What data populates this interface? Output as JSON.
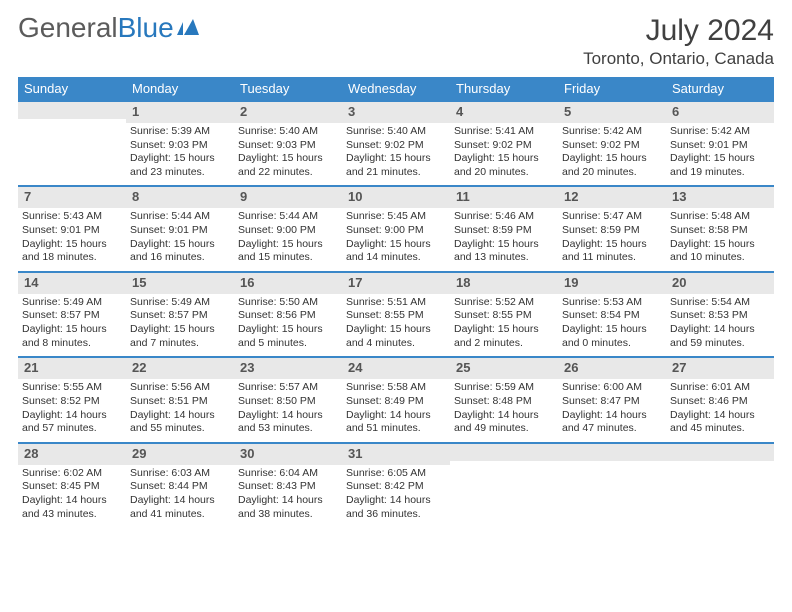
{
  "branding": {
    "logo_text_1": "General",
    "logo_text_2": "Blue",
    "logo_color_general": "#5b5b5b",
    "logo_color_blue": "#2878bd"
  },
  "header": {
    "month_title": "July 2024",
    "location": "Toronto, Ontario, Canada",
    "title_fontsize": 30,
    "location_fontsize": 17,
    "title_color": "#404040"
  },
  "calendar": {
    "type": "table",
    "header_bg": "#3a87c8",
    "header_fg": "#ffffff",
    "daynum_bg": "#e8e8e8",
    "daynum_border_top": "#3a87c8",
    "body_fontsize": 10.5,
    "header_fontsize": 13,
    "columns": [
      "Sunday",
      "Monday",
      "Tuesday",
      "Wednesday",
      "Thursday",
      "Friday",
      "Saturday"
    ],
    "weeks": [
      [
        {
          "day": "",
          "sunrise": "",
          "sunset": "",
          "daylight": ""
        },
        {
          "day": "1",
          "sunrise": "Sunrise: 5:39 AM",
          "sunset": "Sunset: 9:03 PM",
          "daylight": "Daylight: 15 hours and 23 minutes."
        },
        {
          "day": "2",
          "sunrise": "Sunrise: 5:40 AM",
          "sunset": "Sunset: 9:03 PM",
          "daylight": "Daylight: 15 hours and 22 minutes."
        },
        {
          "day": "3",
          "sunrise": "Sunrise: 5:40 AM",
          "sunset": "Sunset: 9:02 PM",
          "daylight": "Daylight: 15 hours and 21 minutes."
        },
        {
          "day": "4",
          "sunrise": "Sunrise: 5:41 AM",
          "sunset": "Sunset: 9:02 PM",
          "daylight": "Daylight: 15 hours and 20 minutes."
        },
        {
          "day": "5",
          "sunrise": "Sunrise: 5:42 AM",
          "sunset": "Sunset: 9:02 PM",
          "daylight": "Daylight: 15 hours and 20 minutes."
        },
        {
          "day": "6",
          "sunrise": "Sunrise: 5:42 AM",
          "sunset": "Sunset: 9:01 PM",
          "daylight": "Daylight: 15 hours and 19 minutes."
        }
      ],
      [
        {
          "day": "7",
          "sunrise": "Sunrise: 5:43 AM",
          "sunset": "Sunset: 9:01 PM",
          "daylight": "Daylight: 15 hours and 18 minutes."
        },
        {
          "day": "8",
          "sunrise": "Sunrise: 5:44 AM",
          "sunset": "Sunset: 9:01 PM",
          "daylight": "Daylight: 15 hours and 16 minutes."
        },
        {
          "day": "9",
          "sunrise": "Sunrise: 5:44 AM",
          "sunset": "Sunset: 9:00 PM",
          "daylight": "Daylight: 15 hours and 15 minutes."
        },
        {
          "day": "10",
          "sunrise": "Sunrise: 5:45 AM",
          "sunset": "Sunset: 9:00 PM",
          "daylight": "Daylight: 15 hours and 14 minutes."
        },
        {
          "day": "11",
          "sunrise": "Sunrise: 5:46 AM",
          "sunset": "Sunset: 8:59 PM",
          "daylight": "Daylight: 15 hours and 13 minutes."
        },
        {
          "day": "12",
          "sunrise": "Sunrise: 5:47 AM",
          "sunset": "Sunset: 8:59 PM",
          "daylight": "Daylight: 15 hours and 11 minutes."
        },
        {
          "day": "13",
          "sunrise": "Sunrise: 5:48 AM",
          "sunset": "Sunset: 8:58 PM",
          "daylight": "Daylight: 15 hours and 10 minutes."
        }
      ],
      [
        {
          "day": "14",
          "sunrise": "Sunrise: 5:49 AM",
          "sunset": "Sunset: 8:57 PM",
          "daylight": "Daylight: 15 hours and 8 minutes."
        },
        {
          "day": "15",
          "sunrise": "Sunrise: 5:49 AM",
          "sunset": "Sunset: 8:57 PM",
          "daylight": "Daylight: 15 hours and 7 minutes."
        },
        {
          "day": "16",
          "sunrise": "Sunrise: 5:50 AM",
          "sunset": "Sunset: 8:56 PM",
          "daylight": "Daylight: 15 hours and 5 minutes."
        },
        {
          "day": "17",
          "sunrise": "Sunrise: 5:51 AM",
          "sunset": "Sunset: 8:55 PM",
          "daylight": "Daylight: 15 hours and 4 minutes."
        },
        {
          "day": "18",
          "sunrise": "Sunrise: 5:52 AM",
          "sunset": "Sunset: 8:55 PM",
          "daylight": "Daylight: 15 hours and 2 minutes."
        },
        {
          "day": "19",
          "sunrise": "Sunrise: 5:53 AM",
          "sunset": "Sunset: 8:54 PM",
          "daylight": "Daylight: 15 hours and 0 minutes."
        },
        {
          "day": "20",
          "sunrise": "Sunrise: 5:54 AM",
          "sunset": "Sunset: 8:53 PM",
          "daylight": "Daylight: 14 hours and 59 minutes."
        }
      ],
      [
        {
          "day": "21",
          "sunrise": "Sunrise: 5:55 AM",
          "sunset": "Sunset: 8:52 PM",
          "daylight": "Daylight: 14 hours and 57 minutes."
        },
        {
          "day": "22",
          "sunrise": "Sunrise: 5:56 AM",
          "sunset": "Sunset: 8:51 PM",
          "daylight": "Daylight: 14 hours and 55 minutes."
        },
        {
          "day": "23",
          "sunrise": "Sunrise: 5:57 AM",
          "sunset": "Sunset: 8:50 PM",
          "daylight": "Daylight: 14 hours and 53 minutes."
        },
        {
          "day": "24",
          "sunrise": "Sunrise: 5:58 AM",
          "sunset": "Sunset: 8:49 PM",
          "daylight": "Daylight: 14 hours and 51 minutes."
        },
        {
          "day": "25",
          "sunrise": "Sunrise: 5:59 AM",
          "sunset": "Sunset: 8:48 PM",
          "daylight": "Daylight: 14 hours and 49 minutes."
        },
        {
          "day": "26",
          "sunrise": "Sunrise: 6:00 AM",
          "sunset": "Sunset: 8:47 PM",
          "daylight": "Daylight: 14 hours and 47 minutes."
        },
        {
          "day": "27",
          "sunrise": "Sunrise: 6:01 AM",
          "sunset": "Sunset: 8:46 PM",
          "daylight": "Daylight: 14 hours and 45 minutes."
        }
      ],
      [
        {
          "day": "28",
          "sunrise": "Sunrise: 6:02 AM",
          "sunset": "Sunset: 8:45 PM",
          "daylight": "Daylight: 14 hours and 43 minutes."
        },
        {
          "day": "29",
          "sunrise": "Sunrise: 6:03 AM",
          "sunset": "Sunset: 8:44 PM",
          "daylight": "Daylight: 14 hours and 41 minutes."
        },
        {
          "day": "30",
          "sunrise": "Sunrise: 6:04 AM",
          "sunset": "Sunset: 8:43 PM",
          "daylight": "Daylight: 14 hours and 38 minutes."
        },
        {
          "day": "31",
          "sunrise": "Sunrise: 6:05 AM",
          "sunset": "Sunset: 8:42 PM",
          "daylight": "Daylight: 14 hours and 36 minutes."
        },
        {
          "day": "",
          "sunrise": "",
          "sunset": "",
          "daylight": ""
        },
        {
          "day": "",
          "sunrise": "",
          "sunset": "",
          "daylight": ""
        },
        {
          "day": "",
          "sunrise": "",
          "sunset": "",
          "daylight": ""
        }
      ]
    ]
  }
}
